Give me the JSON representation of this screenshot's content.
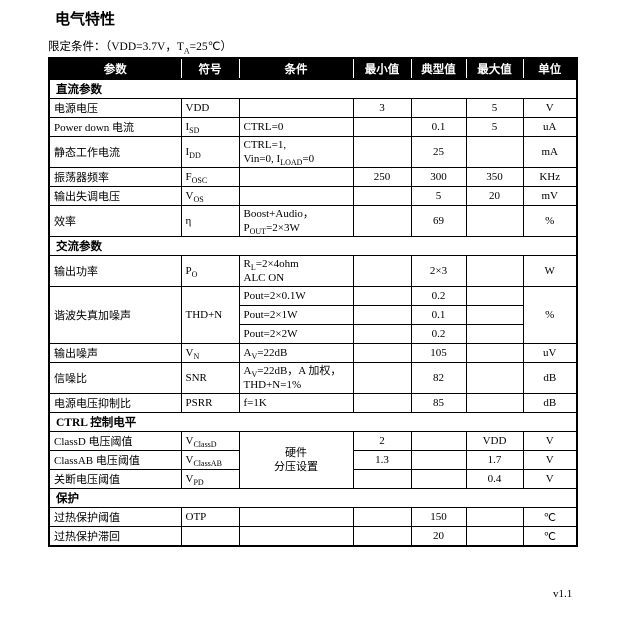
{
  "title": "电气特性",
  "conditions": {
    "prefix": "限定条件：（VDD=3.7V，T",
    "sub": "A",
    "suffix": "=25℃）"
  },
  "version": "v1.1",
  "table": {
    "headers": [
      "参数",
      "符号",
      "条件",
      "最小值",
      "典型值",
      "最大值",
      "单位"
    ],
    "rows": [
      {
        "type": "section",
        "label": "直流参数"
      },
      {
        "type": "data",
        "param": "电源电压",
        "symbol": [
          [
            "VDD",
            ""
          ]
        ],
        "cond": [],
        "min": "3",
        "typ": "",
        "max": "5",
        "unit": "V"
      },
      {
        "type": "data",
        "param": "Power down  电流",
        "symbol": [
          [
            "I",
            ""
          ],
          [
            "SD",
            "sub"
          ]
        ],
        "cond": [
          [
            [
              "CTRL=0",
              ""
            ]
          ]
        ],
        "min": "",
        "typ": "0.1",
        "max": "5",
        "unit": "uA"
      },
      {
        "type": "data",
        "param": "静态工作电流",
        "symbol": [
          [
            "I",
            ""
          ],
          [
            "DD",
            "sub"
          ]
        ],
        "cond": [
          [
            [
              "CTRL=1,",
              ""
            ]
          ],
          [
            [
              "Vin=0, I",
              ""
            ],
            [
              "LOAD",
              "sub"
            ],
            [
              "=0",
              ""
            ]
          ]
        ],
        "min": "",
        "typ": "25",
        "max": "",
        "unit": "mA"
      },
      {
        "type": "data",
        "param": "振荡器频率",
        "symbol": [
          [
            "F",
            ""
          ],
          [
            "OSC",
            "sub"
          ]
        ],
        "cond": [],
        "min": "250",
        "typ": "300",
        "max": "350",
        "unit": "KHz"
      },
      {
        "type": "data",
        "param": "输出失调电压",
        "symbol": [
          [
            "V",
            ""
          ],
          [
            "OS",
            "sub"
          ]
        ],
        "cond": [],
        "min": "",
        "typ": "5",
        "max": "20",
        "unit": "mV"
      },
      {
        "type": "data",
        "param": "效率",
        "symbol": [
          [
            "η",
            ""
          ]
        ],
        "cond": [
          [
            [
              "Boost+Audio，",
              ""
            ]
          ],
          [
            [
              "P",
              ""
            ],
            [
              "OUT",
              "sub"
            ],
            [
              "=2×3W",
              ""
            ]
          ]
        ],
        "min": "",
        "typ": "69",
        "max": "",
        "unit": "%"
      },
      {
        "type": "section",
        "label": "交流参数"
      },
      {
        "type": "data",
        "param": "输出功率",
        "symbol": [
          [
            "P",
            ""
          ],
          [
            "O",
            "sub"
          ]
        ],
        "cond": [
          [
            [
              "R",
              ""
            ],
            [
              "L",
              "sub"
            ],
            [
              "=2×4ohm",
              ""
            ]
          ],
          [
            [
              "ALC ON",
              ""
            ]
          ]
        ],
        "min": "",
        "typ": "2×3",
        "max": "",
        "unit": "W"
      },
      {
        "type": "group",
        "param": "谐波失真加噪声",
        "symbol": [
          [
            "THD+N",
            ""
          ]
        ],
        "unit": "%",
        "subrows": [
          {
            "cond": [
              [
                [
                  "Pout=2×0.1W",
                  ""
                ]
              ]
            ],
            "min": "",
            "typ": "0.2",
            "max": ""
          },
          {
            "cond": [
              [
                [
                  "Pout=2×1W",
                  ""
                ]
              ]
            ],
            "min": "",
            "typ": "0.1",
            "max": ""
          },
          {
            "cond": [
              [
                [
                  "Pout=2×2W",
                  ""
                ]
              ]
            ],
            "min": "",
            "typ": "0.2",
            "max": ""
          }
        ]
      },
      {
        "type": "data",
        "param": "输出噪声",
        "symbol": [
          [
            "V",
            ""
          ],
          [
            "N",
            "sub"
          ]
        ],
        "cond": [
          [
            [
              "A",
              ""
            ],
            [
              "V",
              "sub"
            ],
            [
              "=22dB",
              ""
            ]
          ]
        ],
        "min": "",
        "typ": "105",
        "max": "",
        "unit": "uV"
      },
      {
        "type": "data",
        "param": "信噪比",
        "symbol": [
          [
            "SNR",
            ""
          ]
        ],
        "cond": [
          [
            [
              "A",
              ""
            ],
            [
              "V",
              "sub"
            ],
            [
              "=22dB，A 加权，",
              ""
            ]
          ],
          [
            [
              "THD+N=1%",
              ""
            ]
          ]
        ],
        "min": "",
        "typ": "82",
        "max": "",
        "unit": "dB"
      },
      {
        "type": "data",
        "param": "电源电压抑制比",
        "symbol": [
          [
            "PSRR",
            ""
          ]
        ],
        "cond": [
          [
            [
              "f=1K",
              ""
            ]
          ]
        ],
        "min": "",
        "typ": "85",
        "max": "",
        "unit": "dB"
      },
      {
        "type": "section",
        "label": "CTRL 控制电平"
      },
      {
        "type": "condgroup",
        "cond_lines": [
          "硬件",
          "分压设置"
        ],
        "subrows": [
          {
            "param": "ClassD 电压阈值",
            "symbol": [
              [
                "V",
                ""
              ],
              [
                "ClassD",
                "sub"
              ]
            ],
            "min": "2",
            "typ": "",
            "max": "VDD",
            "unit": "V"
          },
          {
            "param": "ClassAB 电压阈值",
            "symbol": [
              [
                "V",
                ""
              ],
              [
                "ClassAB",
                "sub"
              ]
            ],
            "min": "1.3",
            "typ": "",
            "max": "1.7",
            "unit": "V"
          },
          {
            "param": "关断电压阈值",
            "symbol": [
              [
                "V",
                ""
              ],
              [
                "PD",
                "sub"
              ]
            ],
            "min": "",
            "typ": "",
            "max": "0.4",
            "unit": "V"
          }
        ]
      },
      {
        "type": "section",
        "label": "保护"
      },
      {
        "type": "data",
        "param": "过热保护阈值",
        "symbol": [
          [
            "OTP",
            ""
          ]
        ],
        "cond": [],
        "min": "",
        "typ": "150",
        "max": "",
        "unit": "℃"
      },
      {
        "type": "data",
        "param": "过热保护滞回",
        "symbol": [],
        "cond": [],
        "min": "",
        "typ": "20",
        "max": "",
        "unit": "℃"
      }
    ]
  }
}
